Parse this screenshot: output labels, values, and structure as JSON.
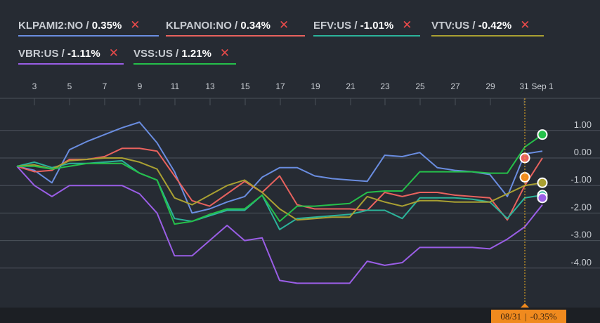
{
  "legend": [
    {
      "ticker": "KLPAMI2:NO",
      "change": "0.35%",
      "color": "#6a8de0",
      "remove": "✕"
    },
    {
      "ticker": "KLPANOI:NO",
      "change": "0.34%",
      "color": "#e8625e",
      "remove": "✕"
    },
    {
      "ticker": "EFV:US",
      "change": "-1.01%",
      "color": "#2bb39a",
      "remove": "✕"
    },
    {
      "ticker": "VTV:US",
      "change": "-0.42%",
      "color": "#a9a032",
      "remove": "✕"
    },
    {
      "ticker": "VBR:US",
      "change": "-1.11%",
      "color": "#9a5ee6",
      "remove": "✕"
    },
    {
      "ticker": "VSS:US",
      "change": "1.21%",
      "color": "#25c04a",
      "remove": "✕"
    }
  ],
  "tooltip": {
    "date": "08/31",
    "value": "-0.35%",
    "color": "#f08a1e"
  },
  "chart_data": {
    "type": "line",
    "x_ticks": [
      "3",
      "5",
      "7",
      "9",
      "11",
      "13",
      "15",
      "17",
      "19",
      "21",
      "23",
      "25",
      "27",
      "29",
      "31",
      "Sep 1"
    ],
    "y_ticks": [
      "1.00",
      "0.00",
      "-1.00",
      "-2.00",
      "-3.00",
      "-4.00"
    ],
    "ylim": [
      -4.5,
      1.6
    ],
    "grid": true,
    "x": [
      2,
      3,
      4,
      5,
      6,
      7,
      8,
      9,
      10,
      11,
      12,
      13,
      14,
      15,
      16,
      17,
      18,
      19,
      20,
      21,
      22,
      23,
      24,
      25,
      26,
      27,
      28,
      29,
      30,
      31,
      32
    ],
    "series": [
      {
        "name": "KLPAMI2:NO",
        "color": "#6a8de0",
        "values": [
          -0.3,
          -0.45,
          -0.9,
          0.3,
          0.6,
          0.85,
          1.1,
          1.3,
          0.55,
          -0.5,
          -2.0,
          -1.85,
          -1.6,
          -1.4,
          -0.7,
          -0.35,
          -0.35,
          -0.65,
          -0.75,
          -0.8,
          -0.85,
          0.1,
          0.05,
          0.2,
          -0.35,
          -0.45,
          -0.5,
          -0.6,
          -1.4,
          0.15,
          0.25
        ]
      },
      {
        "name": "KLPANOI:NO",
        "color": "#e8625e",
        "values": [
          -0.3,
          -0.5,
          -0.45,
          -0.05,
          -0.05,
          0.05,
          0.35,
          0.35,
          0.25,
          -0.65,
          -1.55,
          -1.75,
          -1.3,
          -0.85,
          -1.25,
          -0.65,
          -1.7,
          -1.85,
          -1.85,
          -1.85,
          -1.9,
          -1.25,
          -1.4,
          -1.25,
          -1.25,
          -1.35,
          -1.4,
          -1.45,
          -2.25,
          -1.0,
          0.0
        ]
      },
      {
        "name": "EFV:US",
        "color": "#2bb39a",
        "values": [
          -0.3,
          -0.15,
          -0.35,
          -0.2,
          -0.2,
          -0.15,
          -0.1,
          -0.55,
          -0.8,
          -2.2,
          -2.3,
          -2.1,
          -1.9,
          -1.9,
          -1.35,
          -2.6,
          -2.2,
          -2.15,
          -2.1,
          -2.05,
          -1.9,
          -1.9,
          -2.2,
          -1.45,
          -1.45,
          -1.45,
          -1.5,
          -1.6,
          -2.2,
          -1.45,
          -1.35
        ]
      },
      {
        "name": "VTV:US",
        "color": "#a9a032",
        "values": [
          -0.3,
          -0.25,
          -0.4,
          -0.1,
          -0.05,
          0.0,
          0.0,
          -0.15,
          -0.4,
          -1.45,
          -1.7,
          -1.35,
          -1.0,
          -0.8,
          -1.25,
          -1.85,
          -2.25,
          -2.2,
          -2.15,
          -2.15,
          -1.4,
          -1.6,
          -1.75,
          -1.55,
          -1.55,
          -1.6,
          -1.6,
          -1.6,
          -1.3,
          -1.0,
          -0.9
        ]
      },
      {
        "name": "VBR:US",
        "color": "#9a5ee6",
        "values": [
          -0.3,
          -1.0,
          -1.4,
          -1.0,
          -1.0,
          -1.0,
          -1.0,
          -1.3,
          -2.0,
          -3.55,
          -3.55,
          -3.0,
          -2.45,
          -3.0,
          -2.9,
          -4.45,
          -4.55,
          -4.55,
          -4.55,
          -4.55,
          -3.75,
          -3.9,
          -3.8,
          -3.25,
          -3.25,
          -3.25,
          -3.25,
          -3.3,
          -2.95,
          -2.5,
          -1.7
        ]
      },
      {
        "name": "VSS:US",
        "color": "#25c04a",
        "values": [
          -0.3,
          -0.3,
          -0.4,
          -0.3,
          -0.2,
          -0.2,
          -0.2,
          -0.55,
          -0.8,
          -2.4,
          -2.3,
          -2.05,
          -1.85,
          -1.85,
          -1.35,
          -2.3,
          -1.75,
          -1.75,
          -1.7,
          -1.65,
          -1.25,
          -1.2,
          -1.2,
          -0.5,
          -0.5,
          -0.5,
          -0.5,
          -0.55,
          -0.55,
          0.4,
          0.85
        ]
      }
    ]
  }
}
